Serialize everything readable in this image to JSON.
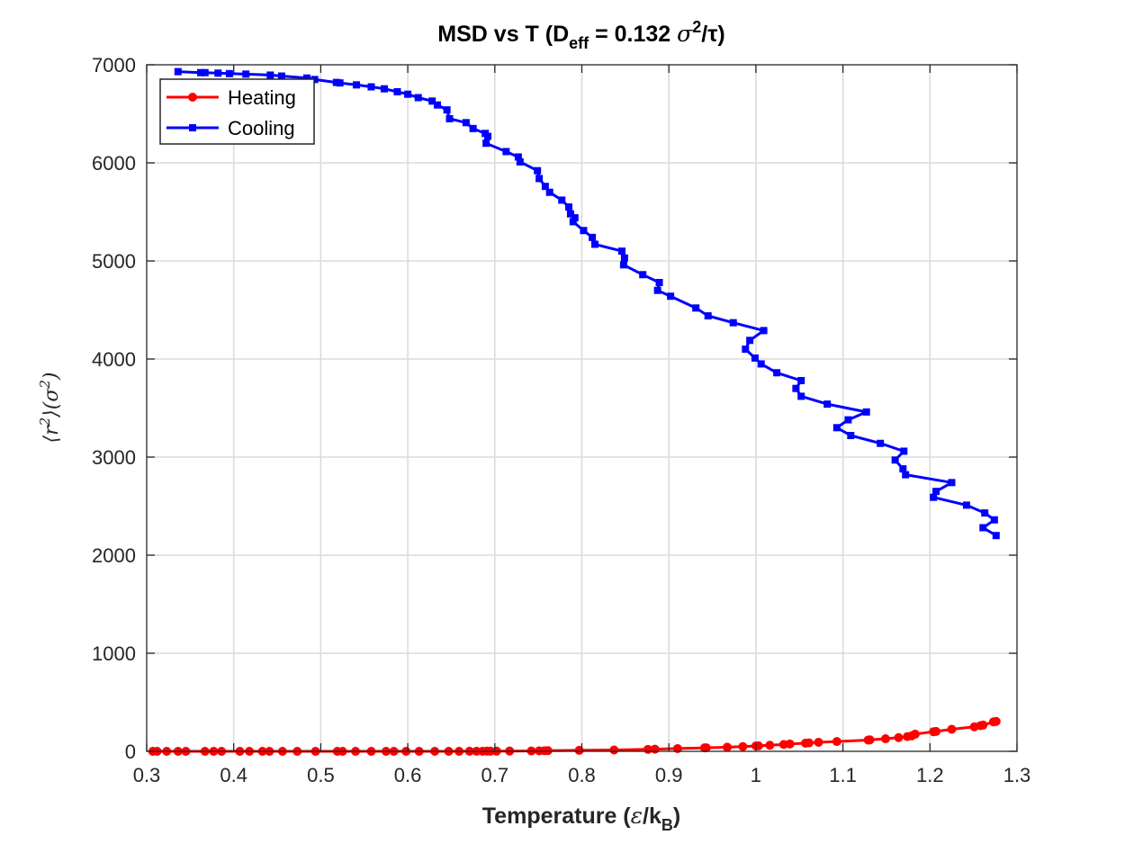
{
  "chart_data": {
    "type": "line",
    "title": "MSD vs T (D_eff = 0.132 σ²/τ)",
    "title_parts": {
      "main": "MSD vs T (D",
      "sub": "eff",
      "mid": " = 0.132 ",
      "sigma": "σ",
      "sup": "2",
      "tail": "/τ)"
    },
    "xlabel": "Temperature (ε/k_B)",
    "xlabel_parts": {
      "main": "Temperature (",
      "eps": "ε",
      "slash": "/k",
      "sub": "B",
      "tail": ")"
    },
    "ylabel": "⟨r²⟩(σ²)",
    "ylabel_parts": {
      "a": "⟨r",
      "sup1": "2",
      "b": "⟩(σ",
      "sup2": "2",
      "c": ")"
    },
    "xlim": [
      0.3,
      1.3
    ],
    "ylim": [
      0,
      7000
    ],
    "xticks": [
      "0.3",
      "0.4",
      "0.5",
      "0.6",
      "0.7",
      "0.8",
      "0.9",
      "1",
      "1.1",
      "1.2",
      "1.3"
    ],
    "yticks": [
      "0",
      "1000",
      "2000",
      "3000",
      "4000",
      "5000",
      "6000",
      "7000"
    ],
    "grid": true,
    "legend_position": "top-left",
    "series": [
      {
        "name": "Heating",
        "color": "#ff0000",
        "marker": "circle",
        "x": [
          0.307,
          0.312,
          0.323,
          0.336,
          0.345,
          0.367,
          0.377,
          0.386,
          0.407,
          0.418,
          0.433,
          0.441,
          0.456,
          0.473,
          0.494,
          0.519,
          0.525,
          0.54,
          0.558,
          0.575,
          0.584,
          0.598,
          0.613,
          0.631,
          0.647,
          0.659,
          0.671,
          0.679,
          0.686,
          0.691,
          0.695,
          0.702,
          0.717,
          0.742,
          0.751,
          0.757,
          0.761,
          0.797,
          0.837,
          0.876,
          0.884,
          0.91,
          0.941,
          0.943,
          0.967,
          0.985,
          1.0,
          1.003,
          1.016,
          1.032,
          1.039,
          1.057,
          1.061,
          1.072,
          1.093,
          1.129,
          1.131,
          1.149,
          1.164,
          1.174,
          1.179,
          1.183,
          1.204,
          1.207,
          1.225,
          1.251,
          1.258,
          1.261,
          1.273,
          1.276
        ],
        "y": [
          0,
          0,
          0,
          0,
          0,
          0,
          0,
          0,
          0,
          0,
          0,
          0,
          0,
          0,
          0,
          0,
          0,
          0,
          0,
          0,
          0,
          0,
          0,
          0,
          0,
          0,
          1,
          1,
          1,
          2,
          2,
          2,
          3,
          4,
          5,
          6,
          7,
          10,
          14,
          20,
          22,
          28,
          35,
          36,
          42,
          48,
          55,
          56,
          62,
          70,
          75,
          83,
          86,
          92,
          100,
          115,
          117,
          128,
          140,
          150,
          158,
          175,
          200,
          203,
          225,
          250,
          262,
          268,
          300,
          305
        ]
      },
      {
        "name": "Cooling",
        "color": "#0000ff",
        "marker": "square",
        "x": [
          0.336,
          0.362,
          0.367,
          0.382,
          0.395,
          0.414,
          0.442,
          0.455,
          0.484,
          0.493,
          0.518,
          0.522,
          0.541,
          0.558,
          0.573,
          0.588,
          0.6,
          0.612,
          0.628,
          0.634,
          0.645,
          0.648,
          0.667,
          0.675,
          0.689,
          0.692,
          0.69,
          0.713,
          0.727,
          0.729,
          0.749,
          0.751,
          0.758,
          0.763,
          0.777,
          0.785,
          0.787,
          0.792,
          0.79,
          0.802,
          0.812,
          0.815,
          0.846,
          0.849,
          0.848,
          0.87,
          0.889,
          0.887,
          0.902,
          0.931,
          0.945,
          0.974,
          1.009,
          0.993,
          0.988,
          0.999,
          1.006,
          1.024,
          1.052,
          1.046,
          1.052,
          1.082,
          1.127,
          1.106,
          1.093,
          1.109,
          1.143,
          1.17,
          1.16,
          1.169,
          1.172,
          1.225,
          1.207,
          1.204,
          1.242,
          1.263,
          1.274,
          1.261,
          1.276
        ],
        "y": [
          6930,
          6920,
          6920,
          6915,
          6910,
          6905,
          6895,
          6885,
          6865,
          6850,
          6820,
          6815,
          6795,
          6775,
          6755,
          6725,
          6700,
          6665,
          6630,
          6590,
          6540,
          6450,
          6410,
          6350,
          6300,
          6270,
          6200,
          6115,
          6060,
          6010,
          5920,
          5840,
          5760,
          5700,
          5620,
          5550,
          5480,
          5440,
          5400,
          5310,
          5240,
          5170,
          5100,
          5030,
          4960,
          4860,
          4780,
          4700,
          4640,
          4520,
          4440,
          4370,
          4290,
          4190,
          4100,
          4010,
          3950,
          3860,
          3780,
          3700,
          3620,
          3540,
          3460,
          3380,
          3300,
          3220,
          3140,
          3060,
          2970,
          2880,
          2820,
          2740,
          2650,
          2590,
          2510,
          2430,
          2360,
          2280,
          2200
        ]
      }
    ]
  }
}
